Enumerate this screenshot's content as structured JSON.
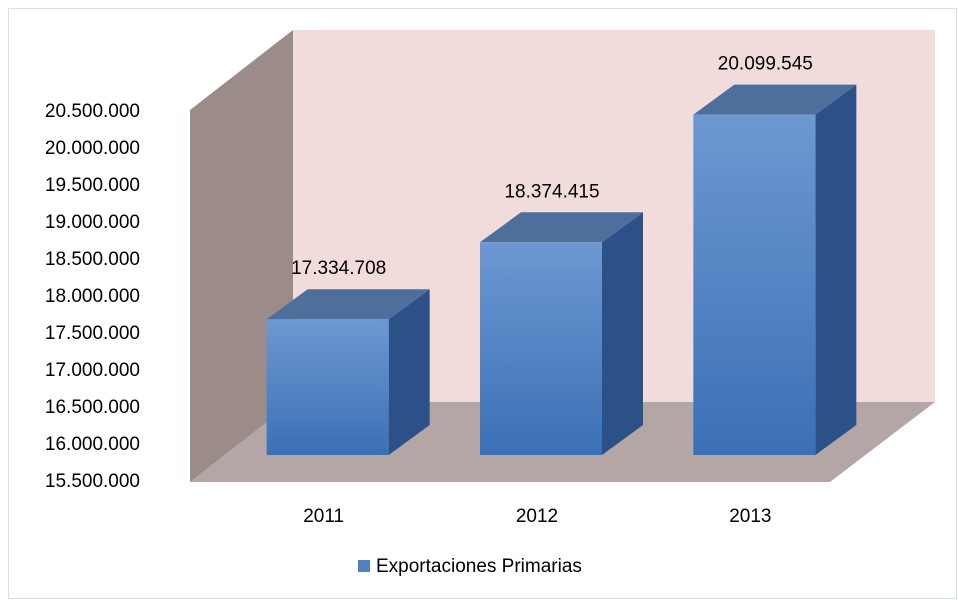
{
  "chart_data": {
    "type": "bar3d",
    "categories": [
      "2011",
      "2012",
      "2013"
    ],
    "series": [
      {
        "name": "Exportaciones Primarias",
        "color": "#4f81bd",
        "values": [
          17334708,
          18374415,
          20099545
        ],
        "value_labels": [
          "17.334.708",
          "18.374.415",
          "20.099.545"
        ]
      }
    ],
    "ylim": [
      15500000,
      20500000
    ],
    "yticks": [
      {
        "value": 15500000,
        "label": "15.500.000"
      },
      {
        "value": 16000000,
        "label": "16.000.000"
      },
      {
        "value": 16500000,
        "label": "16.500.000"
      },
      {
        "value": 17000000,
        "label": "17.000.000"
      },
      {
        "value": 17500000,
        "label": "17.500.000"
      },
      {
        "value": 18000000,
        "label": "18.000.000"
      },
      {
        "value": 18500000,
        "label": "18.500.000"
      },
      {
        "value": 19000000,
        "label": "19.000.000"
      },
      {
        "value": 19500000,
        "label": "19.500.000"
      },
      {
        "value": 20000000,
        "label": "20.000.000"
      },
      {
        "value": 20500000,
        "label": "20.500.000"
      }
    ],
    "legend": "bottom"
  }
}
